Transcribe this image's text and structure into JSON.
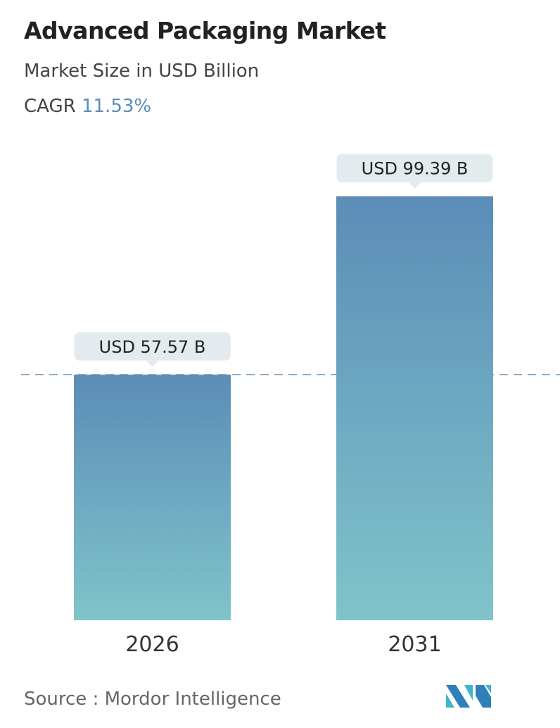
{
  "chart_data": {
    "type": "bar",
    "title": "Advanced Packaging Market",
    "subtitle": "Market Size in USD Billion",
    "cagr_label": "CAGR",
    "cagr_value": "11.53%",
    "categories": [
      "2026",
      "2031"
    ],
    "values": [
      57.57,
      99.39
    ],
    "data_labels": [
      "USD 57.57 B",
      "USD 99.39 B"
    ],
    "reference_line": 57.57,
    "grid": false,
    "colors": {
      "bar_top": "#5b8db8",
      "bar_bottom": "#80c4ca",
      "label_bg": "#e3ebee",
      "accent": "#5b8db8"
    }
  },
  "source": "Source :  Mordor Intelligence",
  "logo_text": "Mordor Intelligence"
}
